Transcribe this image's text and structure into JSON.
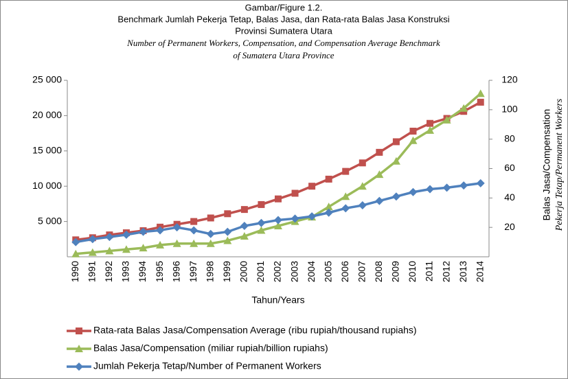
{
  "chart_data": {
    "type": "line",
    "title": [
      "Gambar/Figure 1.2.",
      "Benchmark Jumlah Pekerja Tetap, Balas Jasa, dan Rata-rata Balas Jasa Konstruksi",
      "Provinsi Sumatera Utara",
      "Number of Permanent Workers, Compensation, and Compensation Average Benchmark",
      "of  Sumatera Utara Province"
    ],
    "xlabel": "Tahun/Years",
    "y2label": [
      "Balas Jasa/Compensation",
      "Pekerja Tetap/Permanent Workers"
    ],
    "categories": [
      "1990",
      "1991",
      "1992",
      "1993",
      "1994",
      "1995",
      "1996",
      "1997",
      "1998",
      "1999",
      "2000",
      "2001",
      "2002",
      "2003",
      "2004",
      "2005",
      "2006",
      "2007",
      "2008",
      "2009",
      "2010",
      "2011",
      "2012",
      "2013",
      "2014"
    ],
    "ylim": [
      0,
      25000
    ],
    "yticks": [
      {
        "value": 5000,
        "label": "5 000"
      },
      {
        "value": 10000,
        "label": "10 000"
      },
      {
        "value": 15000,
        "label": "15 000"
      },
      {
        "value": 20000,
        "label": "20 000"
      },
      {
        "value": 25000,
        "label": "25 000"
      }
    ],
    "y2lim": [
      0,
      120
    ],
    "y2ticks": [
      20,
      40,
      60,
      80,
      100,
      120
    ],
    "series": [
      {
        "name": "Rata-rata Balas Jasa/Compensation Average (ribu rupiah/thousand rupiahs)",
        "color": "#c0504d",
        "marker": "square",
        "values": [
          2400,
          2700,
          3100,
          3400,
          3700,
          4200,
          4600,
          5000,
          5500,
          6100,
          6700,
          7400,
          8200,
          9000,
          10000,
          11000,
          12100,
          13300,
          14800,
          16300,
          17800,
          18900,
          19600,
          20600,
          21900
        ]
      },
      {
        "name": "Balas Jasa/Compensation (miliar rupiah/billion rupiahs)",
        "color": "#9bbb59",
        "marker": "triangle",
        "axis": "y2",
        "values": [
          2,
          3,
          4,
          5,
          6,
          8,
          9,
          9,
          9,
          11,
          14,
          18,
          21,
          24,
          27,
          34,
          41,
          48,
          56,
          65,
          79,
          86,
          93,
          101,
          111
        ]
      },
      {
        "name": "Jumlah Pekerja Tetap/Number of Permanent Workers",
        "color": "#4f81bd",
        "marker": "diamond",
        "axis": "y2",
        "values": [
          10,
          12,
          13.5,
          15,
          17,
          18,
          20,
          18,
          15.5,
          17,
          21,
          23,
          25,
          26,
          27.5,
          30,
          33,
          35,
          38,
          41,
          44,
          46,
          47,
          48.5,
          50
        ]
      }
    ]
  }
}
